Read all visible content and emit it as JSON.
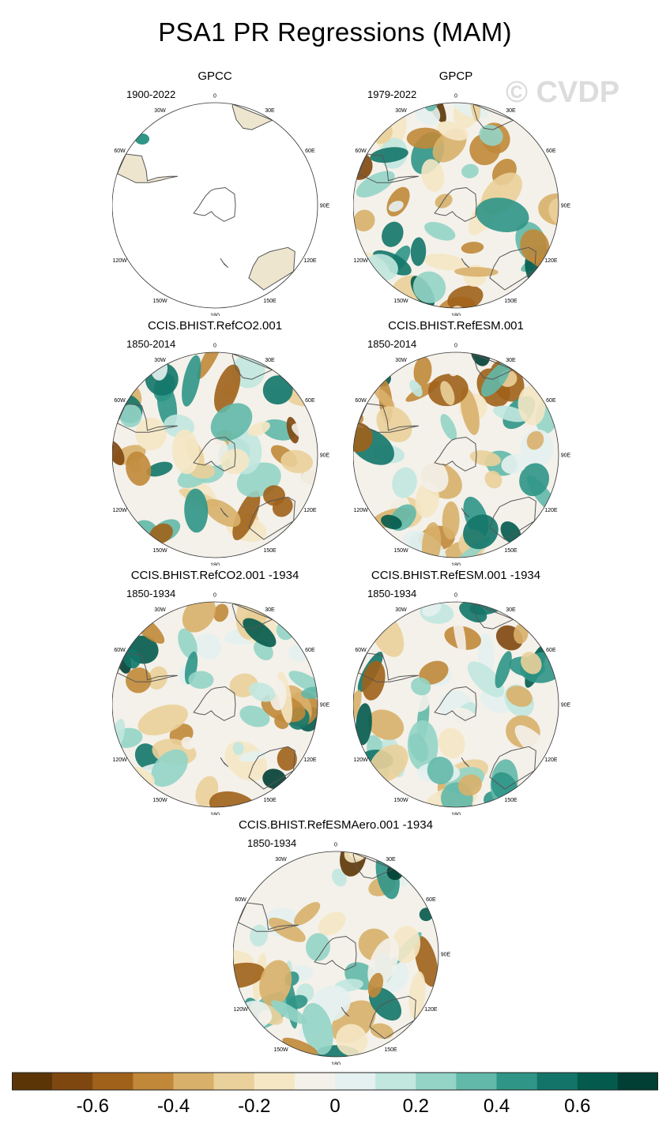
{
  "title": "PSA1 PR Regressions (MAM)",
  "watermark": "© CVDP",
  "lon_labels": [
    "0",
    "30E",
    "60E",
    "90E",
    "120E",
    "150E",
    "180",
    "150W",
    "120W",
    "90W",
    "60W",
    "30W"
  ],
  "panels": [
    {
      "name": "GPCC",
      "years": "1900-2022",
      "seed": 3,
      "data_coverage": "land-only"
    },
    {
      "name": "GPCP",
      "years": "1979-2022",
      "seed": 11,
      "data_coverage": "global"
    },
    {
      "name": "CCIS.BHIST.RefCO2.001",
      "years": "1850-2014",
      "seed": 17,
      "data_coverage": "global"
    },
    {
      "name": "CCIS.BHIST.RefESM.001",
      "years": "1850-2014",
      "seed": 23,
      "data_coverage": "global"
    },
    {
      "name": "CCIS.BHIST.RefCO2.001 -1934",
      "years": "1850-1934",
      "seed": 31,
      "data_coverage": "global"
    },
    {
      "name": "CCIS.BHIST.RefESM.001 -1934",
      "years": "1850-1934",
      "seed": 41,
      "data_coverage": "global"
    },
    {
      "name": "CCIS.BHIST.RefESMAero.001 -1934",
      "years": "1850-1934",
      "seed": 53,
      "data_coverage": "global"
    }
  ],
  "chart_data": {
    "type": "heatmap",
    "projection": "south-polar-stereographic",
    "colorbar": {
      "levels": [
        -0.7,
        -0.6,
        -0.5,
        -0.4,
        -0.3,
        -0.2,
        -0.1,
        0,
        0.1,
        0.2,
        0.3,
        0.4,
        0.5,
        0.6,
        0.7
      ],
      "tick_values": [
        -0.6,
        -0.4,
        -0.2,
        0,
        0.2,
        0.4,
        0.6
      ],
      "tick_labels": [
        "-0.6",
        "-0.4",
        "-0.2",
        "0",
        "0.2",
        "0.4",
        "0.6"
      ],
      "colors": [
        "#5c3506",
        "#7f4710",
        "#a0621a",
        "#c08838",
        "#d8b06a",
        "#ead09a",
        "#f5e7c4",
        "#f4f1ea",
        "#e4f1f0",
        "#c1e7df",
        "#93d4c7",
        "#62b8a9",
        "#2f9587",
        "#137569",
        "#035a4d",
        "#013e33"
      ]
    }
  }
}
